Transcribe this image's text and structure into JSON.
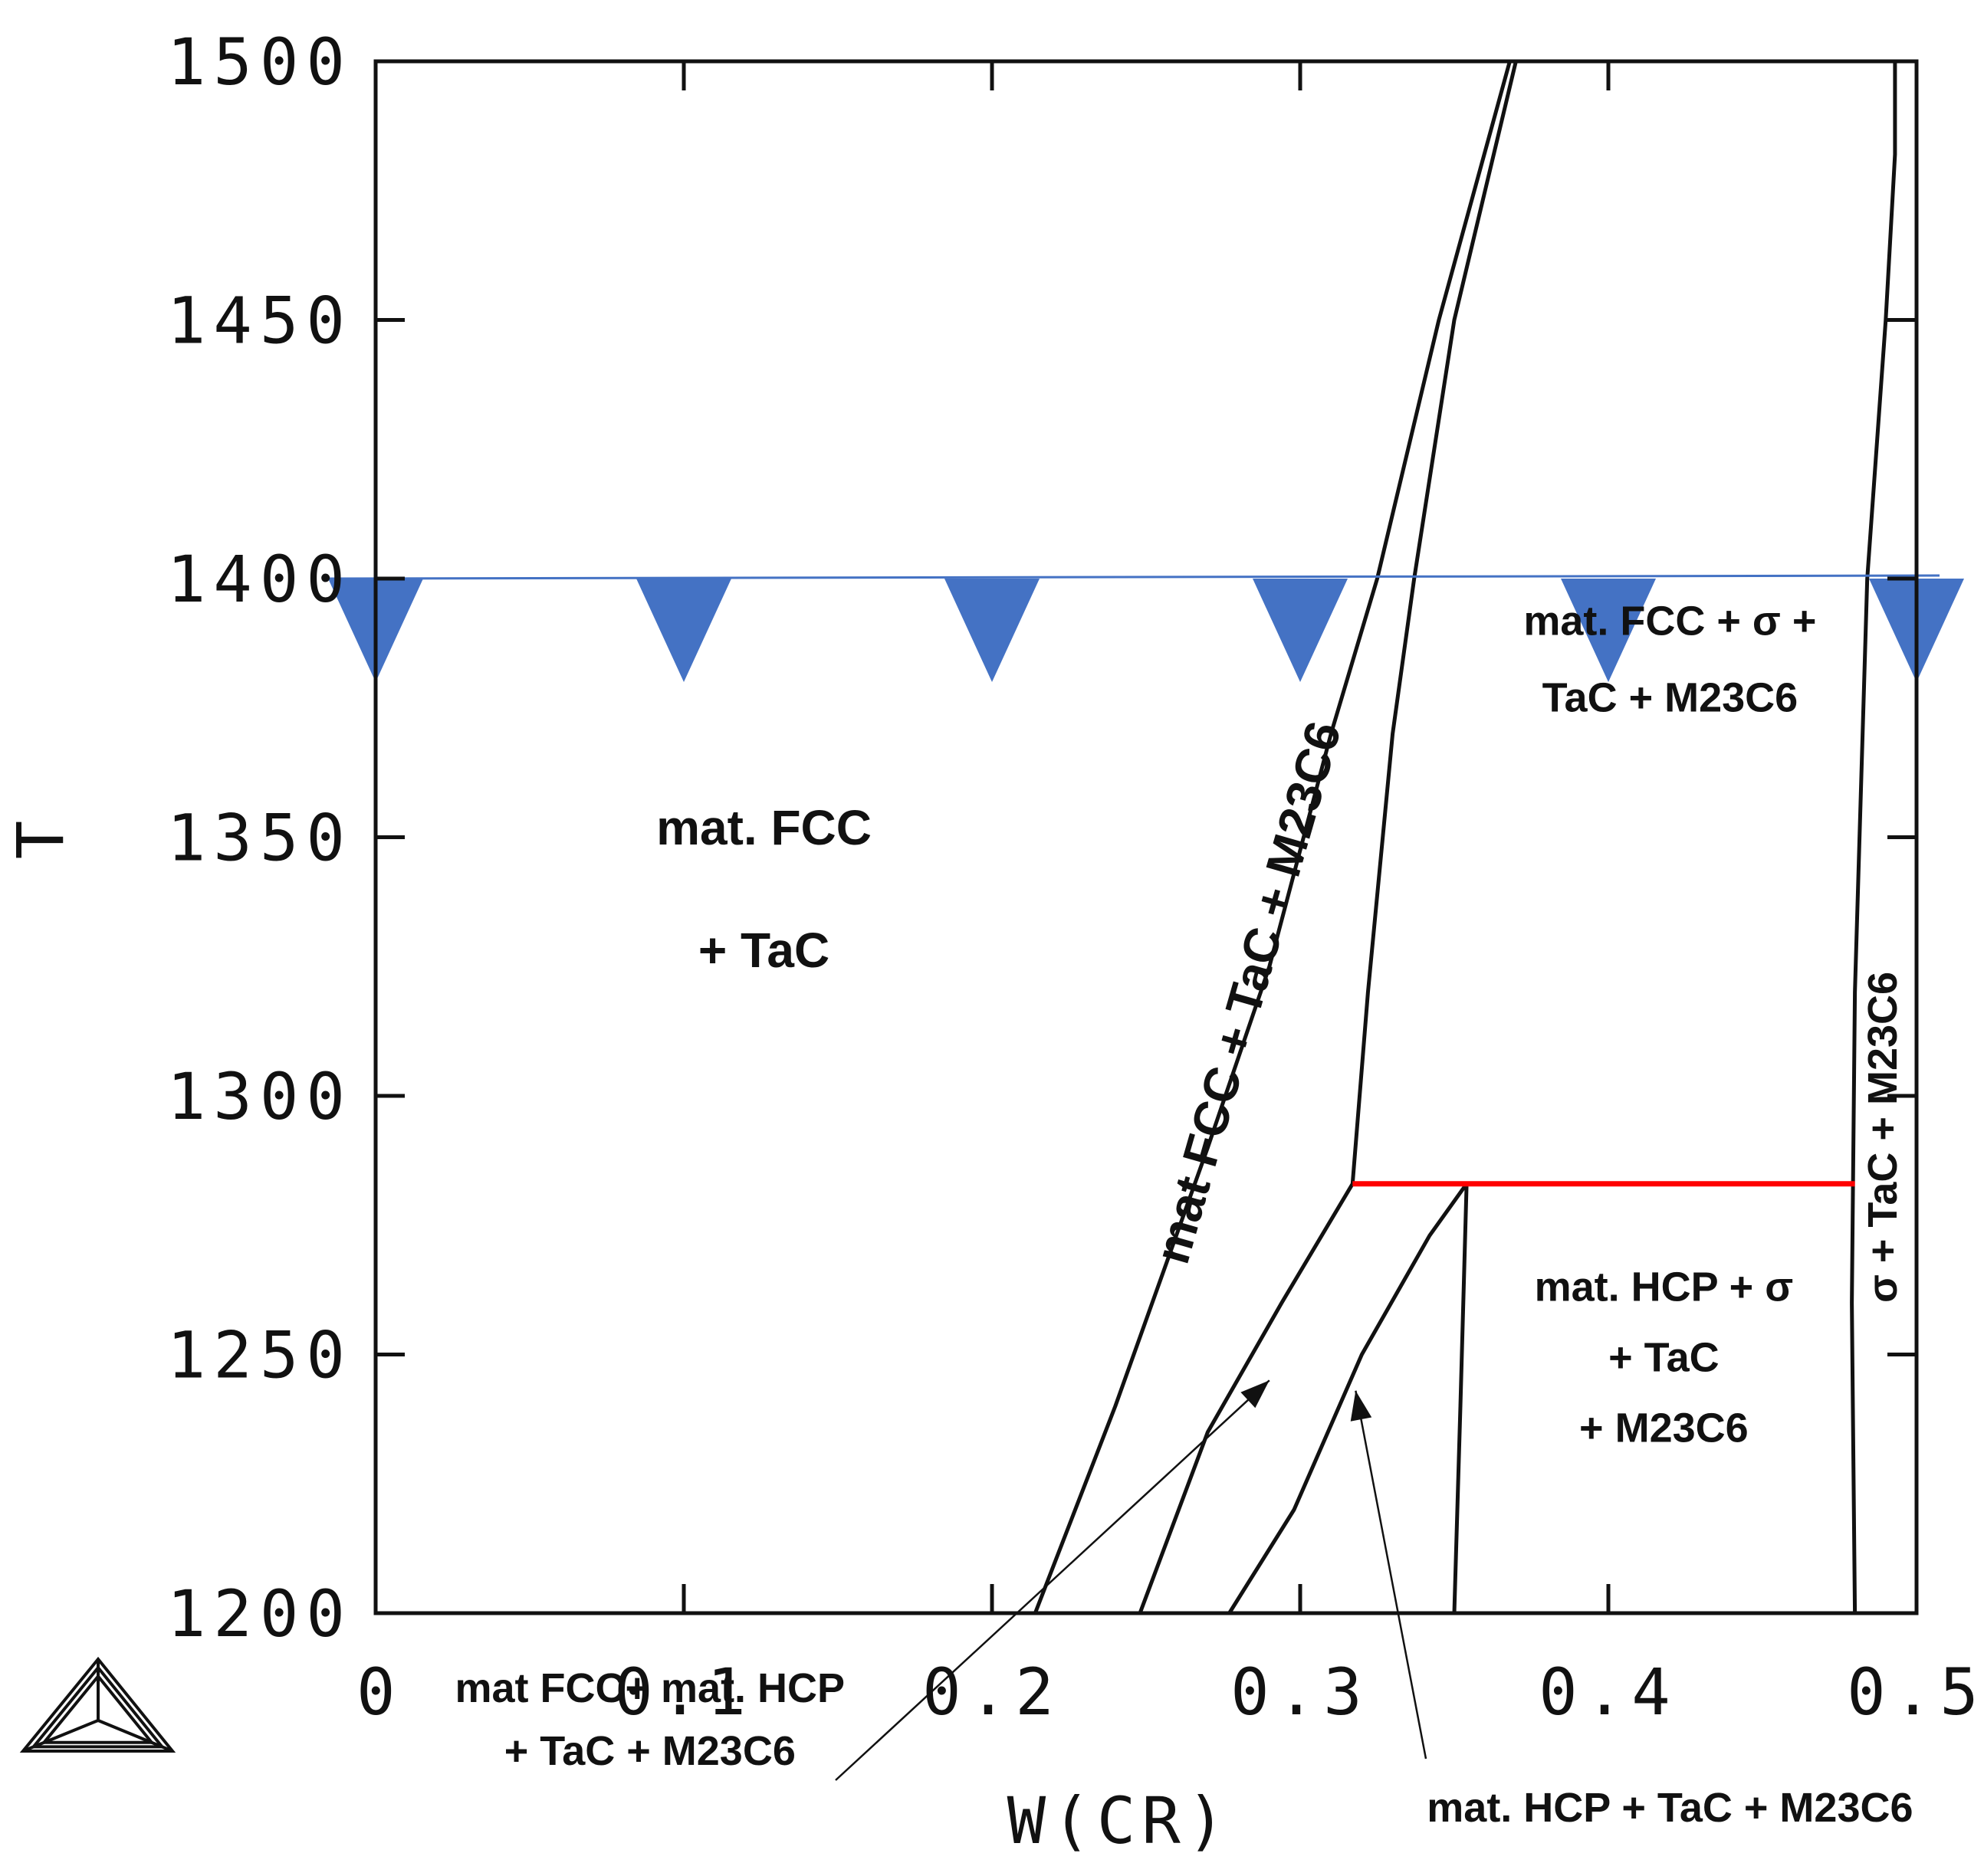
{
  "chart_data": {
    "type": "line",
    "xlabel": "W(CR)",
    "ylabel": "T",
    "xlim": [
      0,
      0.5
    ],
    "ylim": [
      1200,
      1500
    ],
    "x_ticks": [
      "0",
      "0.1",
      "0.2",
      "0.3",
      "0.4",
      "0.5"
    ],
    "y_ticks": [
      "1200",
      "1250",
      "1300",
      "1350",
      "1400",
      "1450",
      "1500"
    ],
    "grid": false,
    "series": [
      {
        "points": [
          [
            0.214,
            1200
          ],
          [
            0.24,
            1240
          ],
          [
            0.27,
            1290
          ],
          [
            0.29,
            1325
          ],
          [
            0.31,
            1370
          ],
          [
            0.325,
            1400
          ],
          [
            0.345,
            1450
          ],
          [
            0.368,
            1500
          ]
        ]
      },
      {
        "points": [
          [
            0.248,
            1200
          ],
          [
            0.27,
            1235
          ],
          [
            0.294,
            1260
          ],
          [
            0.317,
            1283
          ],
          [
            0.322,
            1320
          ],
          [
            0.33,
            1370
          ],
          [
            0.337,
            1400
          ],
          [
            0.35,
            1450
          ],
          [
            0.37,
            1500
          ]
        ]
      },
      {
        "points": [
          [
            0.277,
            1200
          ],
          [
            0.298,
            1220
          ],
          [
            0.32,
            1250
          ],
          [
            0.342,
            1273
          ],
          [
            0.354,
            1283
          ]
        ]
      },
      {
        "points": [
          [
            0.35,
            1200
          ],
          [
            0.352,
            1240
          ],
          [
            0.354,
            1283
          ]
        ]
      },
      {
        "points": [
          [
            0.48,
            1200
          ],
          [
            0.479,
            1260
          ],
          [
            0.48,
            1320
          ],
          [
            0.484,
            1400
          ],
          [
            0.49,
            1450
          ],
          [
            0.493,
            1482
          ],
          [
            0.493,
            1500
          ]
        ]
      }
    ],
    "isopleth": {
      "T": 1400,
      "color": "#4472c4",
      "markers_x": [
        0,
        0.1,
        0.2,
        0.3,
        0.4,
        0.5
      ]
    },
    "invariant_line": {
      "T": 1283,
      "x_range": [
        0.317,
        0.48
      ],
      "color": "#ff0000"
    },
    "annotations": [
      {
        "lines": [
          "mat. FCC",
          "+ TaC"
        ],
        "x": 0.126,
        "T": 1340
      },
      {
        "lines": [
          "mat. FCC + σ +",
          "TaC + M23C6"
        ],
        "x": 0.42,
        "T": 1385
      },
      {
        "lines": [
          "mat FCC + TaC + M23C6"
        ],
        "x": 0.283,
        "T": 1320,
        "rotated": true
      },
      {
        "lines": [
          "mat. HCP + σ",
          "+ TaC",
          "+ M23C6"
        ],
        "x": 0.418,
        "T": 1250
      },
      {
        "lines": [
          "σ + TaC + M23C6"
        ],
        "x": 0.488,
        "T": 1292,
        "rotated": true
      },
      {
        "lines": [
          "mat FCC+ mat. HCP",
          "+ TaC + M23C6"
        ],
        "x": 0.089,
        "T": 1180,
        "arrow_to": [
          0.29,
          1245
        ]
      },
      {
        "lines": [
          "mat. HCP + TaC + M23C6"
        ],
        "x": 0.42,
        "T": 1163,
        "arrow_to": [
          0.318,
          1243
        ]
      }
    ]
  },
  "logo": {
    "name": "thermo-calc-logo-icon"
  }
}
